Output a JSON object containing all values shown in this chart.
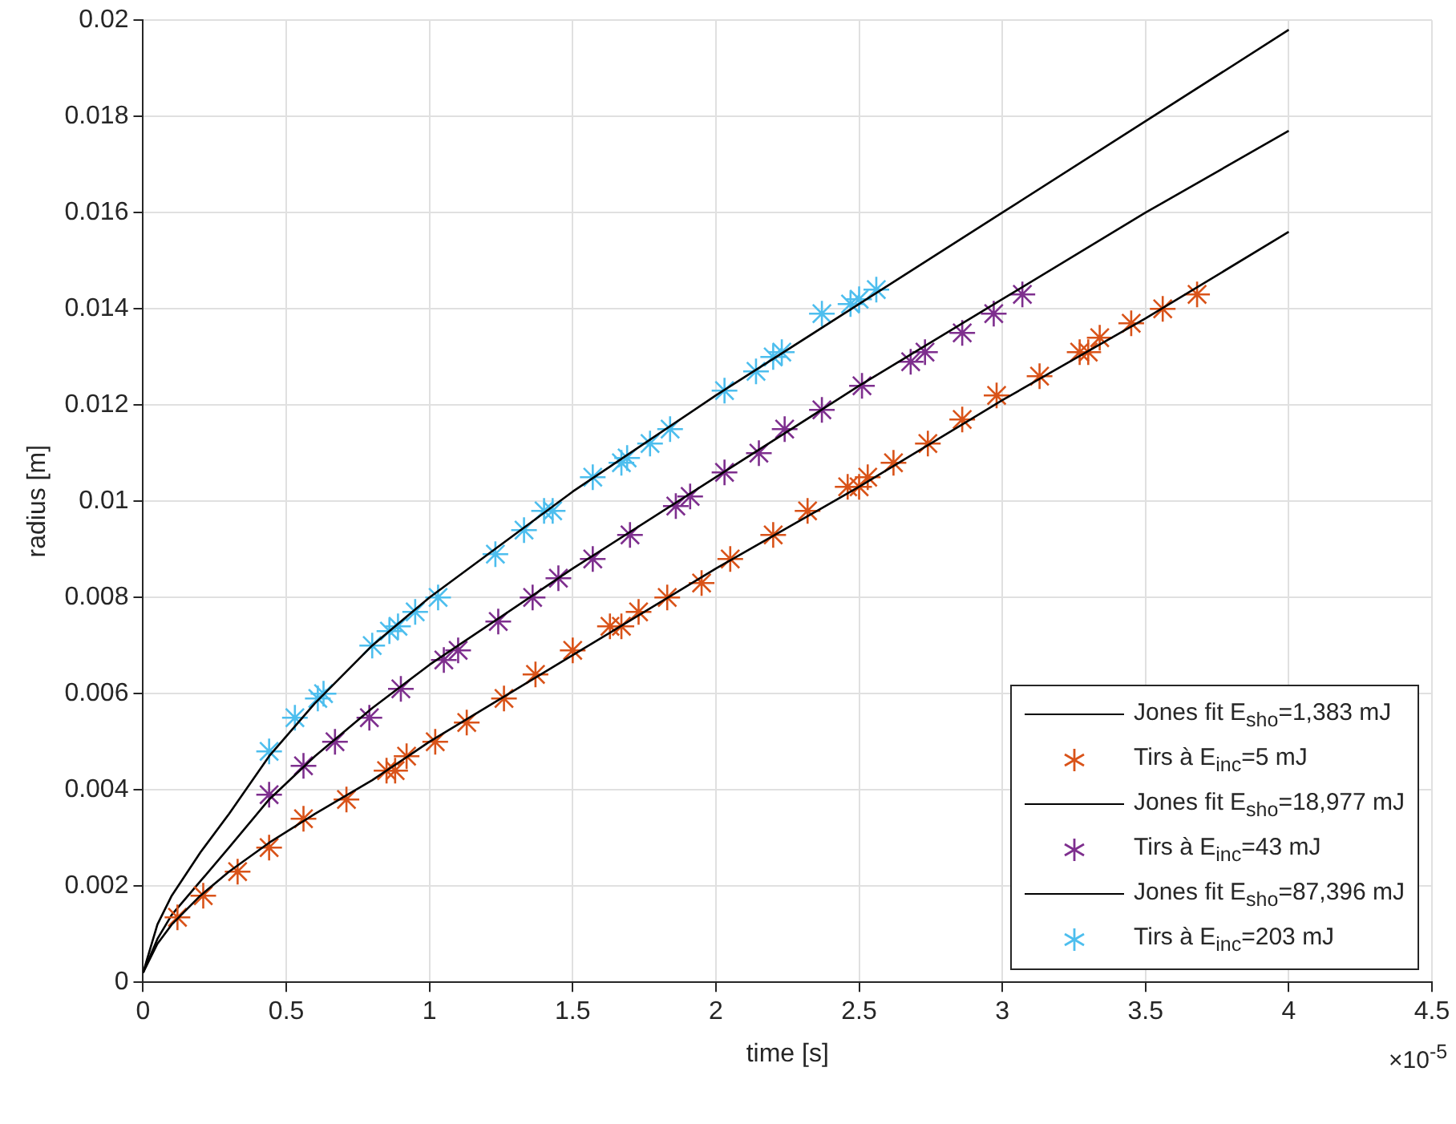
{
  "chart_data": {
    "type": "scatter",
    "xlabel": "time [s]",
    "ylabel": "radius [m]",
    "xlim": [
      0,
      4.5
    ],
    "xticks": [
      0,
      0.5,
      1,
      1.5,
      2,
      2.5,
      3,
      3.5,
      4,
      4.5
    ],
    "ylim": [
      0,
      0.02
    ],
    "yticks": [
      0,
      0.002,
      0.004,
      0.006,
      0.008,
      0.01,
      0.012,
      0.014,
      0.016,
      0.018,
      0.02
    ],
    "grid": true,
    "legend": "bottom right",
    "annotations": [
      "×10$^{-5}$"
    ],
    "series": [
      {
        "name": "Jones fit E$_{sho}$=1,383 mJ",
        "type": "line",
        "marker": "none",
        "line_style": "solid",
        "color": "#000000",
        "x": [
          0,
          0.05,
          0.1,
          0.2,
          0.3,
          0.44,
          0.6,
          0.8,
          1,
          1.5,
          2,
          2.5,
          3,
          3.5,
          4
        ],
        "values": [
          0.0002,
          0.0008,
          0.0012,
          0.0018,
          0.0023,
          0.0029,
          0.0035,
          0.0042,
          0.005,
          0.0068,
          0.0086,
          0.0103,
          0.0121,
          0.0138,
          0.0156
        ]
      },
      {
        "name": "Tirs à E$_{inc}$=5 mJ",
        "marker": "cross",
        "color": "#d95319",
        "x": [
          0.12,
          0.21,
          0.33,
          0.44,
          0.56,
          0.71,
          0.85,
          0.88,
          0.92,
          1.02,
          1.13,
          1.26,
          1.37,
          1.5,
          1.63,
          1.67,
          1.73,
          1.83,
          1.95,
          2.05,
          2.2,
          2.32,
          2.46,
          2.5,
          2.53,
          2.62,
          2.74,
          2.86,
          2.98,
          3.13,
          3.27,
          3.3,
          3.34,
          3.45,
          3.56,
          3.68
        ],
        "values": [
          0.00135,
          0.0018,
          0.0023,
          0.0028,
          0.0034,
          0.0038,
          0.0044,
          0.0044,
          0.0047,
          0.005,
          0.0054,
          0.0059,
          0.0064,
          0.0069,
          0.0074,
          0.0074,
          0.0077,
          0.008,
          0.0083,
          0.0088,
          0.0093,
          0.0098,
          0.0103,
          0.0103,
          0.0105,
          0.0108,
          0.0112,
          0.0117,
          0.0122,
          0.0126,
          0.0131,
          0.0131,
          0.0134,
          0.0137,
          0.014,
          0.0143
        ]
      },
      {
        "name": "Jones fit E$_{sho}$=18,977 mJ",
        "type": "line",
        "marker": "none",
        "line_style": "solid",
        "color": "#000000",
        "x": [
          0,
          0.05,
          0.1,
          0.2,
          0.3,
          0.44,
          0.6,
          0.8,
          1,
          1.5,
          2,
          2.5,
          3,
          3.5,
          4
        ],
        "values": [
          0.0002,
          0.0009,
          0.0014,
          0.0021,
          0.0028,
          0.0038,
          0.0047,
          0.0057,
          0.0066,
          0.0086,
          0.0105,
          0.0124,
          0.0142,
          0.016,
          0.0177
        ]
      },
      {
        "name": "Tirs à E$_{inc}$=43 mJ",
        "marker": "cross",
        "color": "#7e2f8e",
        "x": [
          0.44,
          0.56,
          0.67,
          0.79,
          0.9,
          1.05,
          1.1,
          1.24,
          1.36,
          1.45,
          1.57,
          1.7,
          1.86,
          1.91,
          2.03,
          2.15,
          2.24,
          2.37,
          2.51,
          2.68,
          2.73,
          2.86,
          2.97,
          3.07
        ],
        "values": [
          0.0039,
          0.0045,
          0.005,
          0.0055,
          0.0061,
          0.0067,
          0.0069,
          0.0075,
          0.008,
          0.0084,
          0.0088,
          0.0093,
          0.0099,
          0.0101,
          0.0106,
          0.011,
          0.0115,
          0.0119,
          0.0124,
          0.0129,
          0.0131,
          0.0135,
          0.0139,
          0.0143
        ]
      },
      {
        "name": "Jones fit E$_{sho}$=87,396 mJ",
        "type": "line",
        "marker": "none",
        "line_style": "solid",
        "color": "#000000",
        "x": [
          0,
          0.05,
          0.1,
          0.2,
          0.3,
          0.44,
          0.6,
          0.8,
          1,
          1.5,
          2,
          2.5,
          3,
          3.5,
          4
        ],
        "values": [
          0.0002,
          0.0012,
          0.0018,
          0.0027,
          0.0035,
          0.0047,
          0.0058,
          0.007,
          0.008,
          0.0102,
          0.0122,
          0.0141,
          0.016,
          0.0179,
          0.0198
        ]
      },
      {
        "name": "Tirs à E$_{inc}$=203 mJ",
        "marker": "cross",
        "color": "#4dbeee",
        "x": [
          0.44,
          0.53,
          0.61,
          0.63,
          0.8,
          0.86,
          0.89,
          0.95,
          1.03,
          1.23,
          1.33,
          1.4,
          1.43,
          1.57,
          1.67,
          1.69,
          1.77,
          1.84,
          2.03,
          2.14,
          2.2,
          2.23,
          2.37,
          2.47,
          2.5,
          2.56
        ],
        "values": [
          0.0048,
          0.0055,
          0.0059,
          0.006,
          0.007,
          0.0073,
          0.0074,
          0.0077,
          0.008,
          0.0089,
          0.0094,
          0.0098,
          0.0098,
          0.0105,
          0.0108,
          0.0109,
          0.0112,
          0.0115,
          0.0123,
          0.0127,
          0.013,
          0.0131,
          0.0139,
          0.0141,
          0.0142,
          0.0144
        ]
      }
    ]
  }
}
